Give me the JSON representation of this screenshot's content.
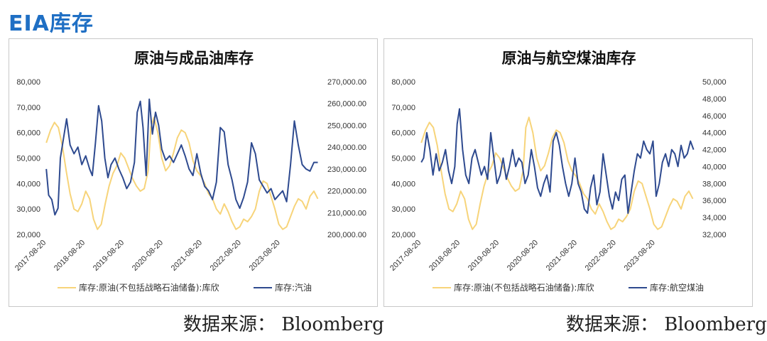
{
  "page": {
    "title": "EIA库存",
    "source_label": "数据来源： Bloomberg"
  },
  "colors": {
    "crude": "#f7d47a",
    "other": "#2e4a8f",
    "title": "#1f6fc4"
  },
  "chart_data": [
    {
      "type": "line",
      "title": "原油与成品油库存",
      "x_ticks": [
        "2017-08-20",
        "2018-08-20",
        "2019-08-20",
        "2020-08-20",
        "2021-08-20",
        "2022-08-20",
        "2023-08-20"
      ],
      "y_left": {
        "ylim": [
          20000,
          80000
        ],
        "ticks": [
          "20,000",
          "30,000",
          "40,000",
          "50,000",
          "60,000",
          "70,000",
          "80,000"
        ]
      },
      "y_right": {
        "ylim": [
          200000,
          270000
        ],
        "ticks": [
          "200,000.00",
          "210,000.00",
          "220,000.00",
          "230,000.00",
          "240,000.00",
          "250,000.00",
          "260,000.00",
          "270,000.00"
        ]
      },
      "x_range": [
        2017.6,
        2024.7
      ],
      "series": [
        {
          "name": "库存:原油(不包括战略石油储备):库欣",
          "axis": "left",
          "color": "#f7d47a",
          "x": [
            2017.64,
            2017.75,
            2017.85,
            2017.95,
            2018.05,
            2018.15,
            2018.25,
            2018.35,
            2018.45,
            2018.55,
            2018.65,
            2018.75,
            2018.85,
            2018.95,
            2019.05,
            2019.15,
            2019.25,
            2019.35,
            2019.45,
            2019.55,
            2019.65,
            2019.75,
            2019.85,
            2019.95,
            2020.05,
            2020.15,
            2020.25,
            2020.32,
            2020.4,
            2020.5,
            2020.6,
            2020.7,
            2020.8,
            2020.9,
            2021.0,
            2021.1,
            2021.2,
            2021.3,
            2021.4,
            2021.5,
            2021.6,
            2021.7,
            2021.8,
            2021.9,
            2022.0,
            2022.1,
            2022.2,
            2022.3,
            2022.4,
            2022.5,
            2022.6,
            2022.7,
            2022.8,
            2022.9,
            2023.0,
            2023.1,
            2023.2,
            2023.3,
            2023.4,
            2023.5,
            2023.6,
            2023.7,
            2023.8,
            2023.9,
            2024.0,
            2024.1,
            2024.2,
            2024.3,
            2024.4,
            2024.5,
            2024.6
          ],
          "y": [
            56000,
            61000,
            64000,
            62000,
            55000,
            45000,
            36000,
            30000,
            29000,
            32000,
            37000,
            34000,
            26000,
            22000,
            24000,
            32000,
            39000,
            44000,
            47000,
            52000,
            50000,
            46000,
            42000,
            39000,
            37000,
            38000,
            45000,
            62000,
            66000,
            60000,
            50000,
            45000,
            47000,
            52000,
            58000,
            61000,
            60000,
            56000,
            49000,
            45000,
            43000,
            40000,
            36000,
            34000,
            30000,
            28000,
            32000,
            29000,
            25000,
            22000,
            23000,
            26000,
            25000,
            27000,
            30000,
            37000,
            41000,
            40000,
            35000,
            30000,
            24000,
            22000,
            23000,
            27000,
            31000,
            34000,
            33000,
            30000,
            35000,
            37000,
            34000
          ]
        },
        {
          "name": "库存:汽油",
          "axis": "right",
          "color": "#2e4a8f",
          "x": [
            2017.64,
            2017.7,
            2017.78,
            2017.86,
            2017.94,
            2018.0,
            2018.08,
            2018.16,
            2018.25,
            2018.35,
            2018.45,
            2018.55,
            2018.65,
            2018.75,
            2018.82,
            2018.9,
            2018.98,
            2019.06,
            2019.14,
            2019.22,
            2019.3,
            2019.4,
            2019.5,
            2019.6,
            2019.7,
            2019.8,
            2019.9,
            2019.97,
            2020.05,
            2020.12,
            2020.2,
            2020.28,
            2020.36,
            2020.44,
            2020.52,
            2020.6,
            2020.7,
            2020.8,
            2020.9,
            2021.0,
            2021.1,
            2021.2,
            2021.3,
            2021.4,
            2021.5,
            2021.6,
            2021.7,
            2021.8,
            2021.9,
            2022.0,
            2022.1,
            2022.2,
            2022.3,
            2022.4,
            2022.5,
            2022.6,
            2022.7,
            2022.8,
            2022.9,
            2023.0,
            2023.1,
            2023.2,
            2023.3,
            2023.4,
            2023.5,
            2023.6,
            2023.7,
            2023.8,
            2023.9,
            2024.0,
            2024.1,
            2024.2,
            2024.3,
            2024.4,
            2024.5,
            2024.6
          ],
          "y": [
            230000,
            218000,
            216000,
            209000,
            212000,
            235000,
            244000,
            253000,
            241000,
            237000,
            240000,
            232000,
            236000,
            230000,
            227000,
            242000,
            259000,
            252000,
            235000,
            226000,
            232000,
            235000,
            230000,
            226000,
            221000,
            224000,
            233000,
            256000,
            261000,
            249000,
            227000,
            262000,
            246000,
            256000,
            250000,
            239000,
            234000,
            236000,
            233000,
            237000,
            241000,
            236000,
            230000,
            227000,
            237000,
            228000,
            222000,
            220000,
            216000,
            224000,
            249000,
            247000,
            232000,
            225000,
            216000,
            212000,
            217000,
            224000,
            242000,
            237000,
            225000,
            222000,
            219000,
            221000,
            216000,
            218000,
            220000,
            215000,
            232000,
            252000,
            241000,
            232000,
            230000,
            229000,
            233000,
            233000
          ]
        }
      ]
    },
    {
      "type": "line",
      "title": "原油与航空煤油库存",
      "x_ticks": [
        "2017-08-20",
        "2018-08-20",
        "2019-08-20",
        "2020-08-20",
        "2021-08-20",
        "2022-08-20",
        "2023-08-20"
      ],
      "y_left": {
        "ylim": [
          20000,
          80000
        ],
        "ticks": [
          "20,000",
          "30,000",
          "40,000",
          "50,000",
          "60,000",
          "70,000",
          "80,000"
        ]
      },
      "y_right": {
        "ylim": [
          32000,
          50000
        ],
        "ticks": [
          "32,000",
          "34,000",
          "36,000",
          "38,000",
          "40,000",
          "42,000",
          "44,000",
          "46,000",
          "48,000",
          "50,000"
        ]
      },
      "x_range": [
        2017.6,
        2024.7
      ],
      "series": [
        {
          "name": "库存:原油(不包括战略石油储备):库欣",
          "axis": "left",
          "color": "#f7d47a",
          "x": [
            2017.64,
            2017.75,
            2017.85,
            2017.95,
            2018.05,
            2018.15,
            2018.25,
            2018.35,
            2018.45,
            2018.55,
            2018.65,
            2018.75,
            2018.85,
            2018.95,
            2019.05,
            2019.15,
            2019.25,
            2019.35,
            2019.45,
            2019.55,
            2019.65,
            2019.75,
            2019.85,
            2019.95,
            2020.05,
            2020.15,
            2020.25,
            2020.32,
            2020.4,
            2020.5,
            2020.6,
            2020.7,
            2020.8,
            2020.9,
            2021.0,
            2021.1,
            2021.2,
            2021.3,
            2021.4,
            2021.5,
            2021.6,
            2021.7,
            2021.8,
            2021.9,
            2022.0,
            2022.1,
            2022.2,
            2022.3,
            2022.4,
            2022.5,
            2022.6,
            2022.7,
            2022.8,
            2022.9,
            2023.0,
            2023.1,
            2023.2,
            2023.3,
            2023.4,
            2023.5,
            2023.6,
            2023.7,
            2023.8,
            2023.9,
            2024.0,
            2024.1,
            2024.2,
            2024.3,
            2024.4,
            2024.5,
            2024.6
          ],
          "y": [
            56000,
            61000,
            64000,
            62000,
            55000,
            45000,
            36000,
            30000,
            29000,
            32000,
            37000,
            34000,
            26000,
            22000,
            24000,
            32000,
            39000,
            44000,
            47000,
            52000,
            50000,
            46000,
            42000,
            39000,
            37000,
            38000,
            45000,
            62000,
            66000,
            60000,
            50000,
            45000,
            47000,
            52000,
            58000,
            61000,
            60000,
            56000,
            49000,
            45000,
            43000,
            40000,
            36000,
            34000,
            30000,
            28000,
            32000,
            29000,
            25000,
            22000,
            23000,
            26000,
            25000,
            27000,
            30000,
            37000,
            41000,
            40000,
            35000,
            30000,
            24000,
            22000,
            23000,
            27000,
            31000,
            34000,
            33000,
            30000,
            35000,
            37000,
            34000
          ]
        },
        {
          "name": "库存:航空煤油",
          "axis": "right",
          "color": "#2e4a8f",
          "x": [
            2017.64,
            2017.7,
            2017.78,
            2017.86,
            2017.94,
            2018.02,
            2018.1,
            2018.18,
            2018.26,
            2018.34,
            2018.42,
            2018.5,
            2018.56,
            2018.62,
            2018.7,
            2018.78,
            2018.86,
            2018.94,
            2019.02,
            2019.1,
            2019.18,
            2019.26,
            2019.34,
            2019.42,
            2019.5,
            2019.58,
            2019.66,
            2019.74,
            2019.82,
            2019.9,
            2019.98,
            2020.06,
            2020.14,
            2020.22,
            2020.3,
            2020.38,
            2020.46,
            2020.54,
            2020.62,
            2020.7,
            2020.78,
            2020.86,
            2020.94,
            2021.02,
            2021.1,
            2021.18,
            2021.26,
            2021.34,
            2021.42,
            2021.5,
            2021.58,
            2021.66,
            2021.74,
            2021.82,
            2021.9,
            2021.98,
            2022.06,
            2022.14,
            2022.22,
            2022.3,
            2022.38,
            2022.46,
            2022.54,
            2022.62,
            2022.7,
            2022.78,
            2022.86,
            2022.94,
            2023.02,
            2023.1,
            2023.18,
            2023.26,
            2023.34,
            2023.42,
            2023.5,
            2023.58,
            2023.66,
            2023.74,
            2023.82,
            2023.9,
            2023.98,
            2024.06,
            2024.14,
            2024.22,
            2024.3,
            2024.38,
            2024.46,
            2024.54,
            2024.62
          ],
          "y": [
            40500,
            41000,
            44000,
            42000,
            39000,
            41500,
            39500,
            40500,
            42000,
            39500,
            38000,
            40000,
            45000,
            46800,
            42000,
            39000,
            38000,
            41000,
            42000,
            40500,
            39000,
            40000,
            38500,
            44000,
            41000,
            38000,
            39000,
            41000,
            38500,
            40000,
            42000,
            40000,
            41000,
            40500,
            38000,
            39000,
            42000,
            40000,
            37500,
            36500,
            38000,
            39000,
            37000,
            43000,
            44000,
            42500,
            40000,
            38000,
            36500,
            38000,
            41000,
            38000,
            37000,
            35000,
            34500,
            37500,
            39000,
            35500,
            37000,
            41500,
            39000,
            36500,
            35000,
            37000,
            36000,
            38500,
            39000,
            34500,
            37000,
            39500,
            41500,
            41000,
            43000,
            42000,
            41500,
            43000,
            36500,
            38000,
            40500,
            41500,
            40000,
            42000,
            41500,
            40000,
            42500,
            41000,
            41500,
            43000,
            42000
          ]
        }
      ]
    }
  ]
}
